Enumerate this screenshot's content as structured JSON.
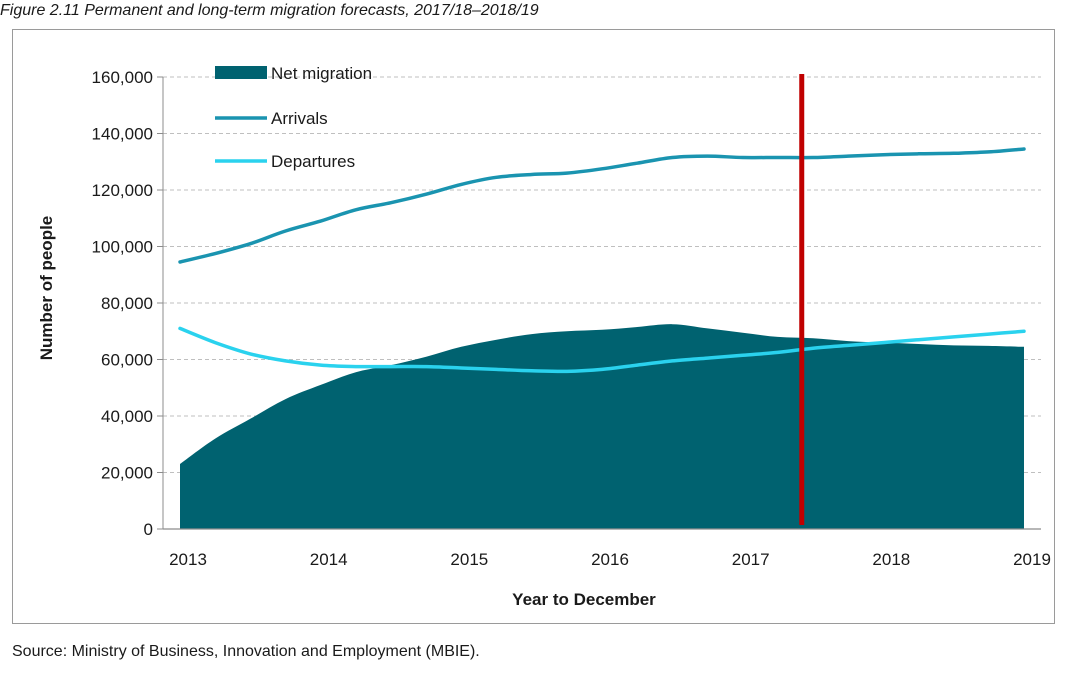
{
  "figure_title": "Figure 2.11  Permanent and long-term migration forecasts, 2017/18–2018/19",
  "source": "Source: Ministry of Business, Innovation and Employment (MBIE).",
  "colors": {
    "net_migration": "#006270",
    "arrivals": "#1a94b0",
    "departures": "#2ad2ee",
    "forecast_marker": "#c00000",
    "grid": "#bfbfbf",
    "axis": "#8c8c8c"
  },
  "chart_data": {
    "type": "area",
    "xlabel": "Year to December",
    "ylabel": "Number of people",
    "xlim": [
      2013,
      2019
    ],
    "ylim": [
      0,
      160000
    ],
    "x_ticks": [
      2013,
      2014,
      2015,
      2016,
      2017,
      2018,
      2019
    ],
    "x_tick_labels": [
      "2013",
      "2014",
      "2015",
      "2016",
      "2017",
      "2018",
      "2019"
    ],
    "y_ticks": [
      0,
      20000,
      40000,
      60000,
      80000,
      100000,
      120000,
      140000,
      160000
    ],
    "y_tick_labels": [
      "0",
      "20,000",
      "40,000",
      "60,000",
      "80,000",
      "100,000",
      "120,000",
      "140,000",
      "160,000"
    ],
    "grid": true,
    "forecast_line_x": 2017.42,
    "x": [
      2013,
      2013.25,
      2013.5,
      2013.75,
      2014,
      2014.25,
      2014.5,
      2014.75,
      2015,
      2015.25,
      2015.5,
      2015.75,
      2016,
      2016.25,
      2016.5,
      2016.75,
      2017,
      2017.25,
      2017.5,
      2017.75,
      2018,
      2018.25,
      2018.5,
      2018.75,
      2019
    ],
    "series": [
      {
        "name": "Net migration",
        "kind": "area",
        "values": [
          23000,
          32000,
          39000,
          46000,
          51000,
          55500,
          58000,
          61000,
          64500,
          67000,
          69000,
          70000,
          70500,
          71500,
          72500,
          71000,
          69500,
          68000,
          67500,
          66500,
          66000,
          65500,
          65000,
          64800,
          64500
        ]
      },
      {
        "name": "Arrivals",
        "kind": "line",
        "values": [
          94500,
          97500,
          101000,
          105500,
          109000,
          113000,
          115500,
          118500,
          122000,
          124500,
          125500,
          126000,
          127500,
          129500,
          131500,
          132000,
          131500,
          131500,
          131500,
          132000,
          132500,
          132800,
          133000,
          133500,
          134500
        ]
      },
      {
        "name": "Departures",
        "kind": "line",
        "values": [
          71000,
          66000,
          62000,
          59500,
          58000,
          57500,
          57500,
          57500,
          57000,
          56500,
          56000,
          55800,
          56500,
          58000,
          59500,
          60500,
          61500,
          62500,
          64000,
          65000,
          66000,
          67000,
          68000,
          69000,
          70000
        ]
      }
    ]
  }
}
